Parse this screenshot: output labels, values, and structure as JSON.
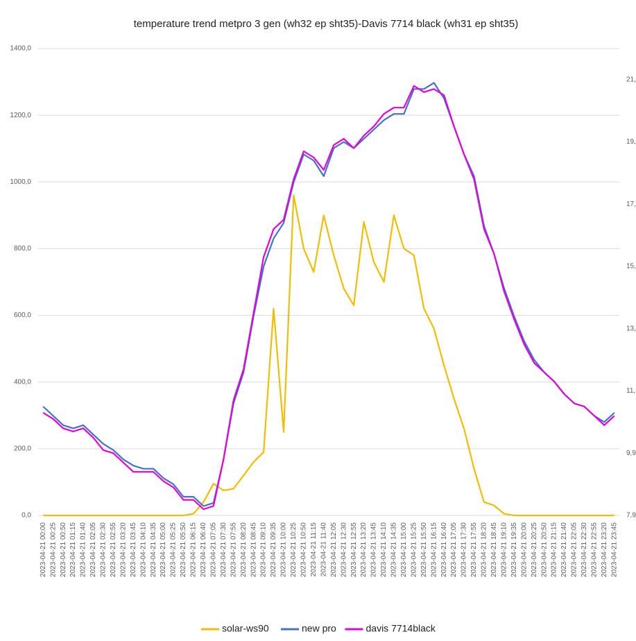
{
  "chart_data": {
    "type": "line",
    "title": "temperature trend metpro 3 gen (wh32 ep sht35)-Davis 7714 black (wh31 ep sht35)",
    "categories": [
      "2023-04-21 00:00",
      "2023-04-21 00:25",
      "2023-04-21 00:50",
      "2023-04-21 01:15",
      "2023-04-21 01:40",
      "2023-04-21 02:05",
      "2023-04-21 02:30",
      "2023-04-21 02:55",
      "2023-04-21 03:20",
      "2023-04-21 03:45",
      "2023-04-21 04:10",
      "2023-04-21 04:35",
      "2023-04-21 05:00",
      "2023-04-21 05:25",
      "2023-04-21 05:50",
      "2023-04-21 06:15",
      "2023-04-21 06:40",
      "2023-04-21 07:05",
      "2023-04-21 07:30",
      "2023-04-21 07:55",
      "2023-04-21 08:20",
      "2023-04-21 08:45",
      "2023-04-21 09:10",
      "2023-04-21 09:35",
      "2023-04-21 10:00",
      "2023-04-21 10:25",
      "2023-04-21 10:50",
      "2023-04-21 11:15",
      "2023-04-21 11:40",
      "2023-04-21 12:05",
      "2023-04-21 12:30",
      "2023-04-21 12:55",
      "2023-04-21 13:20",
      "2023-04-21 13:45",
      "2023-04-21 14:10",
      "2023-04-21 14:35",
      "2023-04-21 15:00",
      "2023-04-21 15:25",
      "2023-04-21 15:50",
      "2023-04-21 16:15",
      "2023-04-21 16:40",
      "2023-04-21 17:05",
      "2023-04-21 17:30",
      "2023-04-21 17:55",
      "2023-04-21 18:20",
      "2023-04-21 18:45",
      "2023-04-21 19:10",
      "2023-04-21 19:35",
      "2023-04-21 20:00",
      "2023-04-21 20:25",
      "2023-04-21 20:50",
      "2023-04-21 21:15",
      "2023-04-21 21:40",
      "2023-04-21 22:05",
      "2023-04-21 22:30",
      "2023-04-21 22:55",
      "2023-04-21 23:20",
      "2023-04-21 23:45"
    ],
    "series": [
      {
        "name": "solar-ws90",
        "color": "#f2bd00",
        "values": [
          0,
          0,
          0,
          0,
          0,
          0,
          0,
          0,
          0,
          0,
          0,
          0,
          0,
          0,
          0,
          5,
          40,
          95,
          75,
          80,
          120,
          160,
          190,
          620,
          250,
          960,
          800,
          730,
          900,
          780,
          680,
          630,
          880,
          760,
          700,
          900,
          800,
          780,
          620,
          560,
          450,
          350,
          260,
          140,
          40,
          30,
          5,
          0,
          0,
          0,
          0,
          0,
          0,
          0,
          0,
          0,
          0,
          0
        ]
      },
      {
        "name": "new pro",
        "color": "#4472c4",
        "axis": "y2",
        "values": [
          11.4,
          11.1,
          10.8,
          10.7,
          10.8,
          10.5,
          10.2,
          10.0,
          9.7,
          9.5,
          9.4,
          9.4,
          9.1,
          8.9,
          8.5,
          8.5,
          8.2,
          8.3,
          9.7,
          11.5,
          12.5,
          14.3,
          15.9,
          16.8,
          17.3,
          18.6,
          19.5,
          19.3,
          18.8,
          19.7,
          19.9,
          19.7,
          20.0,
          20.3,
          20.6,
          20.8,
          20.8,
          21.6,
          21.6,
          21.8,
          21.3,
          20.4,
          19.5,
          18.8,
          17.2,
          16.3,
          15.2,
          14.3,
          13.5,
          12.9,
          12.5,
          12.2,
          11.8,
          11.5,
          11.4,
          11.1,
          10.9,
          11.2
        ]
      },
      {
        "name": "davis 7714black",
        "color": "#e100e1",
        "axis": "y2",
        "values": [
          11.2,
          11.0,
          10.7,
          10.6,
          10.7,
          10.4,
          10.0,
          9.9,
          9.6,
          9.3,
          9.3,
          9.3,
          9.0,
          8.8,
          8.4,
          8.4,
          8.1,
          8.2,
          9.7,
          11.6,
          12.6,
          14.4,
          16.2,
          17.1,
          17.4,
          18.7,
          19.6,
          19.4,
          19.0,
          19.8,
          20.0,
          19.7,
          20.1,
          20.4,
          20.8,
          21.0,
          21.0,
          21.7,
          21.5,
          21.6,
          21.4,
          20.4,
          19.5,
          18.7,
          17.1,
          16.3,
          15.1,
          14.2,
          13.4,
          12.8,
          12.5,
          12.2,
          11.8,
          11.5,
          11.4,
          11.1,
          10.8,
          11.1
        ]
      }
    ],
    "ylim": [
      0,
      1400
    ],
    "yticks": [
      {
        "value": 0,
        "label": "0,0"
      },
      {
        "value": 200,
        "label": "200,0"
      },
      {
        "value": 400,
        "label": "400,0"
      },
      {
        "value": 600,
        "label": "600,0"
      },
      {
        "value": 800,
        "label": "800,0"
      },
      {
        "value": 1000,
        "label": "1000,0"
      },
      {
        "value": 1200,
        "label": "1200,0"
      },
      {
        "value": 1400,
        "label": "1400,0"
      }
    ],
    "y2lim": [
      7.9,
      22.9
    ],
    "y2ticks": [
      {
        "value": 7.9,
        "label": "7,9"
      },
      {
        "value": 9.9,
        "label": "9,9"
      },
      {
        "value": 11.9,
        "label": "11,"
      },
      {
        "value": 13.9,
        "label": "13,"
      },
      {
        "value": 15.9,
        "label": "15,"
      },
      {
        "value": 17.9,
        "label": "17,"
      },
      {
        "value": 19.9,
        "label": "19,"
      },
      {
        "value": 21.9,
        "label": "21,"
      }
    ],
    "grid": true,
    "legend": "bottom"
  }
}
